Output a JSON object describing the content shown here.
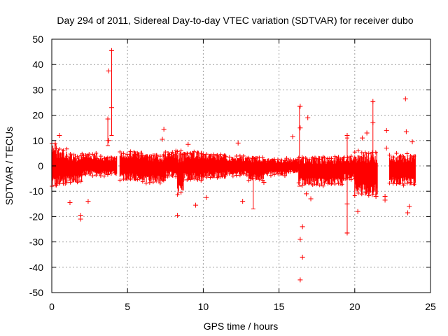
{
  "chart_data": {
    "type": "scatter",
    "title": "Day 294 of 2011, Sidereal Day-to-day VTEC variation (SDTVAR) for receiver dubo",
    "xlabel": "GPS time / hours",
    "ylabel": "SDTVAR / TECUs",
    "xlim": [
      0,
      25
    ],
    "ylim": [
      -50,
      50
    ],
    "xticks": [
      0,
      5,
      10,
      15,
      20,
      25
    ],
    "xtick_labels": [
      "0",
      "5",
      "10",
      "15",
      "20",
      "25"
    ],
    "yticks": [
      -50,
      -40,
      -30,
      -20,
      -10,
      0,
      10,
      20,
      30,
      40,
      50
    ],
    "ytick_labels": [
      "-50",
      "-40",
      "-30",
      "-20",
      "-10",
      "0",
      "10",
      "20",
      "30",
      "40",
      "50"
    ],
    "grid": true,
    "marker": "+",
    "color": "#ff0000",
    "band_segments": [
      {
        "x_start": 0.0,
        "x_end": 0.3,
        "y_low": -9,
        "y_high": 10
      },
      {
        "x_start": 0.3,
        "x_end": 1.0,
        "y_low": -8,
        "y_high": 7
      },
      {
        "x_start": 1.0,
        "x_end": 2.0,
        "y_low": -7,
        "y_high": 5
      },
      {
        "x_start": 2.0,
        "x_end": 3.0,
        "y_low": -4,
        "y_high": 5
      },
      {
        "x_start": 3.0,
        "x_end": 4.3,
        "y_low": -4,
        "y_high": 4
      },
      {
        "x_start": 4.5,
        "x_end": 6.0,
        "y_low": -6,
        "y_high": 6
      },
      {
        "x_start": 6.0,
        "x_end": 7.5,
        "y_low": -7,
        "y_high": 5
      },
      {
        "x_start": 7.5,
        "x_end": 8.3,
        "y_low": -5,
        "y_high": 6
      },
      {
        "x_start": 8.3,
        "x_end": 8.7,
        "y_low": -12,
        "y_high": 6
      },
      {
        "x_start": 8.7,
        "x_end": 10.0,
        "y_low": -6,
        "y_high": 6
      },
      {
        "x_start": 10.0,
        "x_end": 11.5,
        "y_low": -5,
        "y_high": 5
      },
      {
        "x_start": 11.5,
        "x_end": 13.0,
        "y_low": -4,
        "y_high": 4
      },
      {
        "x_start": 13.0,
        "x_end": 14.0,
        "y_low": -6,
        "y_high": 4
      },
      {
        "x_start": 14.0,
        "x_end": 15.5,
        "y_low": -4,
        "y_high": 3
      },
      {
        "x_start": 15.5,
        "x_end": 16.3,
        "y_low": -3,
        "y_high": 3
      },
      {
        "x_start": 16.3,
        "x_end": 18.0,
        "y_low": -8,
        "y_high": 4
      },
      {
        "x_start": 18.0,
        "x_end": 19.3,
        "y_low": -8,
        "y_high": 4
      },
      {
        "x_start": 19.3,
        "x_end": 20.0,
        "y_low": -6,
        "y_high": 4
      },
      {
        "x_start": 20.0,
        "x_end": 21.5,
        "y_low": -12,
        "y_high": 6
      },
      {
        "x_start": 22.3,
        "x_end": 24.0,
        "y_low": -8,
        "y_high": 5
      }
    ],
    "outliers": [
      {
        "x": 3.75,
        "y": 37.5
      },
      {
        "x": 3.95,
        "y": 45.5
      },
      {
        "x": 3.95,
        "y": 23.0
      },
      {
        "x": 3.7,
        "y": 18.5
      },
      {
        "x": 3.75,
        "y": 10.0
      },
      {
        "x": 1.9,
        "y": -21.0
      },
      {
        "x": 1.9,
        "y": -19.5
      },
      {
        "x": 1.2,
        "y": -14.5
      },
      {
        "x": 0.5,
        "y": 12.0
      },
      {
        "x": 2.4,
        "y": -14.0
      },
      {
        "x": 7.4,
        "y": 14.5
      },
      {
        "x": 7.3,
        "y": 10.5
      },
      {
        "x": 8.3,
        "y": -19.5
      },
      {
        "x": 9.0,
        "y": 8.5
      },
      {
        "x": 9.5,
        "y": -15.5
      },
      {
        "x": 10.2,
        "y": -12.5
      },
      {
        "x": 12.6,
        "y": -14.0
      },
      {
        "x": 12.3,
        "y": 9.0
      },
      {
        "x": 14.0,
        "y": -6.5
      },
      {
        "x": 15.9,
        "y": 11.5
      },
      {
        "x": 16.4,
        "y": 23.5
      },
      {
        "x": 16.4,
        "y": 15.0
      },
      {
        "x": 16.9,
        "y": 19.0
      },
      {
        "x": 16.4,
        "y": -45.0
      },
      {
        "x": 16.4,
        "y": -29.0
      },
      {
        "x": 16.55,
        "y": -24.0
      },
      {
        "x": 16.55,
        "y": -36.0
      },
      {
        "x": 16.8,
        "y": -11.0
      },
      {
        "x": 17.1,
        "y": -13.0
      },
      {
        "x": 19.5,
        "y": -26.5
      },
      {
        "x": 19.5,
        "y": -15.0
      },
      {
        "x": 19.5,
        "y": 12.0
      },
      {
        "x": 20.2,
        "y": -18.0
      },
      {
        "x": 20.5,
        "y": 11.0
      },
      {
        "x": 20.8,
        "y": 13.0
      },
      {
        "x": 21.2,
        "y": 25.5
      },
      {
        "x": 21.2,
        "y": 17.0
      },
      {
        "x": 21.4,
        "y": -12.0
      },
      {
        "x": 22.1,
        "y": 14.0
      },
      {
        "x": 22.1,
        "y": 7.0
      },
      {
        "x": 22.0,
        "y": -12.0
      },
      {
        "x": 22.0,
        "y": -13.5
      },
      {
        "x": 23.35,
        "y": 26.5
      },
      {
        "x": 23.4,
        "y": 13.5
      },
      {
        "x": 23.5,
        "y": -18.5
      },
      {
        "x": 23.6,
        "y": -16.0
      },
      {
        "x": 23.8,
        "y": 9.5
      }
    ],
    "error_bars": [
      {
        "x": 3.95,
        "y_low": 12,
        "y_high": 45.5
      },
      {
        "x": 3.7,
        "y_low": 8,
        "y_high": 18.5
      },
      {
        "x": 16.35,
        "y_low": -8,
        "y_high": 23.5
      },
      {
        "x": 19.5,
        "y_low": -26.5,
        "y_high": 11
      },
      {
        "x": 21.2,
        "y_low": -8,
        "y_high": 25.5
      },
      {
        "x": 13.3,
        "y_low": -17,
        "y_high": 3
      }
    ]
  }
}
